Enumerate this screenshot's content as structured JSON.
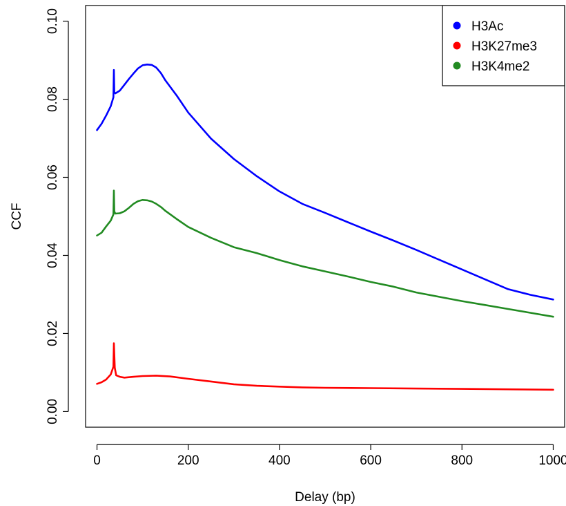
{
  "chart_data": {
    "type": "line",
    "xlabel": "Delay (bp)",
    "ylabel": "CCF",
    "xlim": [
      -25,
      1025
    ],
    "ylim": [
      -0.004,
      0.104
    ],
    "x_ticks": [
      0,
      200,
      400,
      600,
      800,
      1000
    ],
    "x_tick_labels": [
      "0",
      "200",
      "400",
      "600",
      "800",
      "1000"
    ],
    "y_ticks": [
      0.0,
      0.02,
      0.04,
      0.06,
      0.08,
      0.1
    ],
    "y_tick_labels": [
      "0.00",
      "0.02",
      "0.04",
      "0.06",
      "0.08",
      "0.10"
    ],
    "grid": false,
    "legend_position": "top-right",
    "series": [
      {
        "name": "H3Ac",
        "color": "#0000ff",
        "x": [
          0,
          10,
          20,
          30,
          36,
          37,
          38,
          40,
          50,
          60,
          70,
          80,
          90,
          100,
          110,
          120,
          130,
          140,
          150,
          175,
          200,
          250,
          300,
          350,
          400,
          450,
          500,
          550,
          600,
          650,
          700,
          750,
          800,
          850,
          900,
          950,
          1000
        ],
        "y": [
          0.0721,
          0.0737,
          0.0758,
          0.0782,
          0.0805,
          0.0875,
          0.0818,
          0.0815,
          0.0822,
          0.0837,
          0.0852,
          0.0866,
          0.0879,
          0.0887,
          0.0889,
          0.0888,
          0.0881,
          0.0867,
          0.0848,
          0.0809,
          0.0766,
          0.0699,
          0.0647,
          0.0603,
          0.0564,
          0.0532,
          0.0509,
          0.0485,
          0.0461,
          0.0438,
          0.0414,
          0.0389,
          0.0364,
          0.0339,
          0.0314,
          0.0299,
          0.0287
        ]
      },
      {
        "name": "H3K27me3",
        "color": "#ff0000",
        "x": [
          0,
          10,
          20,
          30,
          36,
          37,
          39,
          42,
          50,
          60,
          80,
          100,
          130,
          160,
          200,
          250,
          300,
          350,
          400,
          450,
          500,
          600,
          700,
          800,
          900,
          1000
        ],
        "y": [
          0.0071,
          0.0075,
          0.0082,
          0.0095,
          0.0115,
          0.0175,
          0.0112,
          0.0093,
          0.0089,
          0.0087,
          0.0089,
          0.0091,
          0.0092,
          0.009,
          0.0084,
          0.0077,
          0.007,
          0.0066,
          0.0064,
          0.0062,
          0.0061,
          0.006,
          0.0059,
          0.0058,
          0.0057,
          0.0056
        ]
      },
      {
        "name": "H3K4me2",
        "color": "#228b22",
        "x": [
          0,
          10,
          20,
          30,
          36,
          37,
          38,
          40,
          50,
          60,
          70,
          80,
          90,
          100,
          110,
          120,
          130,
          140,
          150,
          175,
          200,
          250,
          300,
          350,
          400,
          450,
          500,
          550,
          600,
          650,
          700,
          750,
          800,
          850,
          900,
          950,
          1000
        ],
        "y": [
          0.0451,
          0.0458,
          0.0474,
          0.0489,
          0.0505,
          0.0566,
          0.0513,
          0.0507,
          0.0508,
          0.0513,
          0.0522,
          0.0532,
          0.0539,
          0.0542,
          0.0541,
          0.0538,
          0.0532,
          0.0524,
          0.0514,
          0.0493,
          0.0473,
          0.0445,
          0.0421,
          0.0406,
          0.0388,
          0.0372,
          0.0359,
          0.0346,
          0.0332,
          0.032,
          0.0305,
          0.0294,
          0.0283,
          0.0273,
          0.0263,
          0.0253,
          0.0243
        ]
      }
    ]
  }
}
